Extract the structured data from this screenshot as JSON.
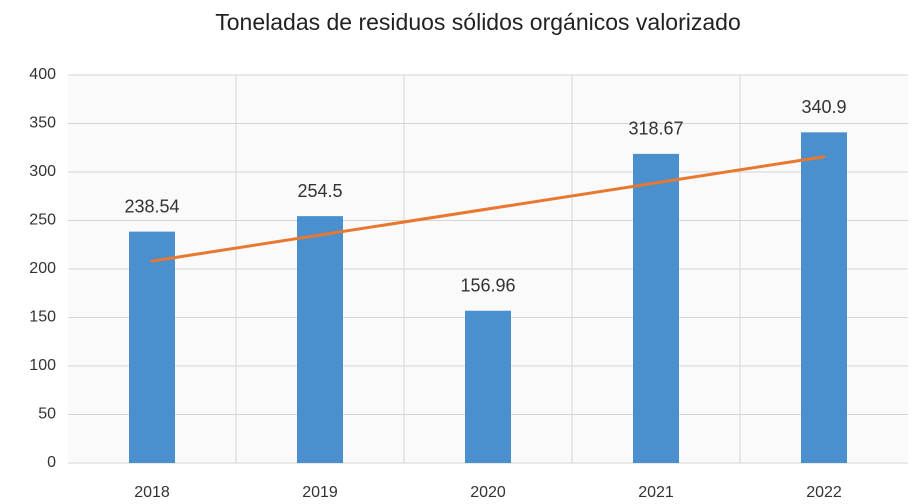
{
  "chart_data": {
    "type": "bar",
    "title": "Toneladas de residuos sólidos orgánicos valorizado",
    "categories": [
      "2018",
      "2019",
      "2020",
      "2021",
      "2022"
    ],
    "values": [
      238.54,
      254.5,
      156.96,
      318.67,
      340.9
    ],
    "color": "#4a90cf",
    "ylim": [
      0,
      400
    ],
    "yticks": [
      0,
      50,
      100,
      150,
      200,
      250,
      300,
      350,
      400
    ],
    "grid": true,
    "trendline": {
      "type": "linear",
      "color": "#e8782f"
    }
  }
}
